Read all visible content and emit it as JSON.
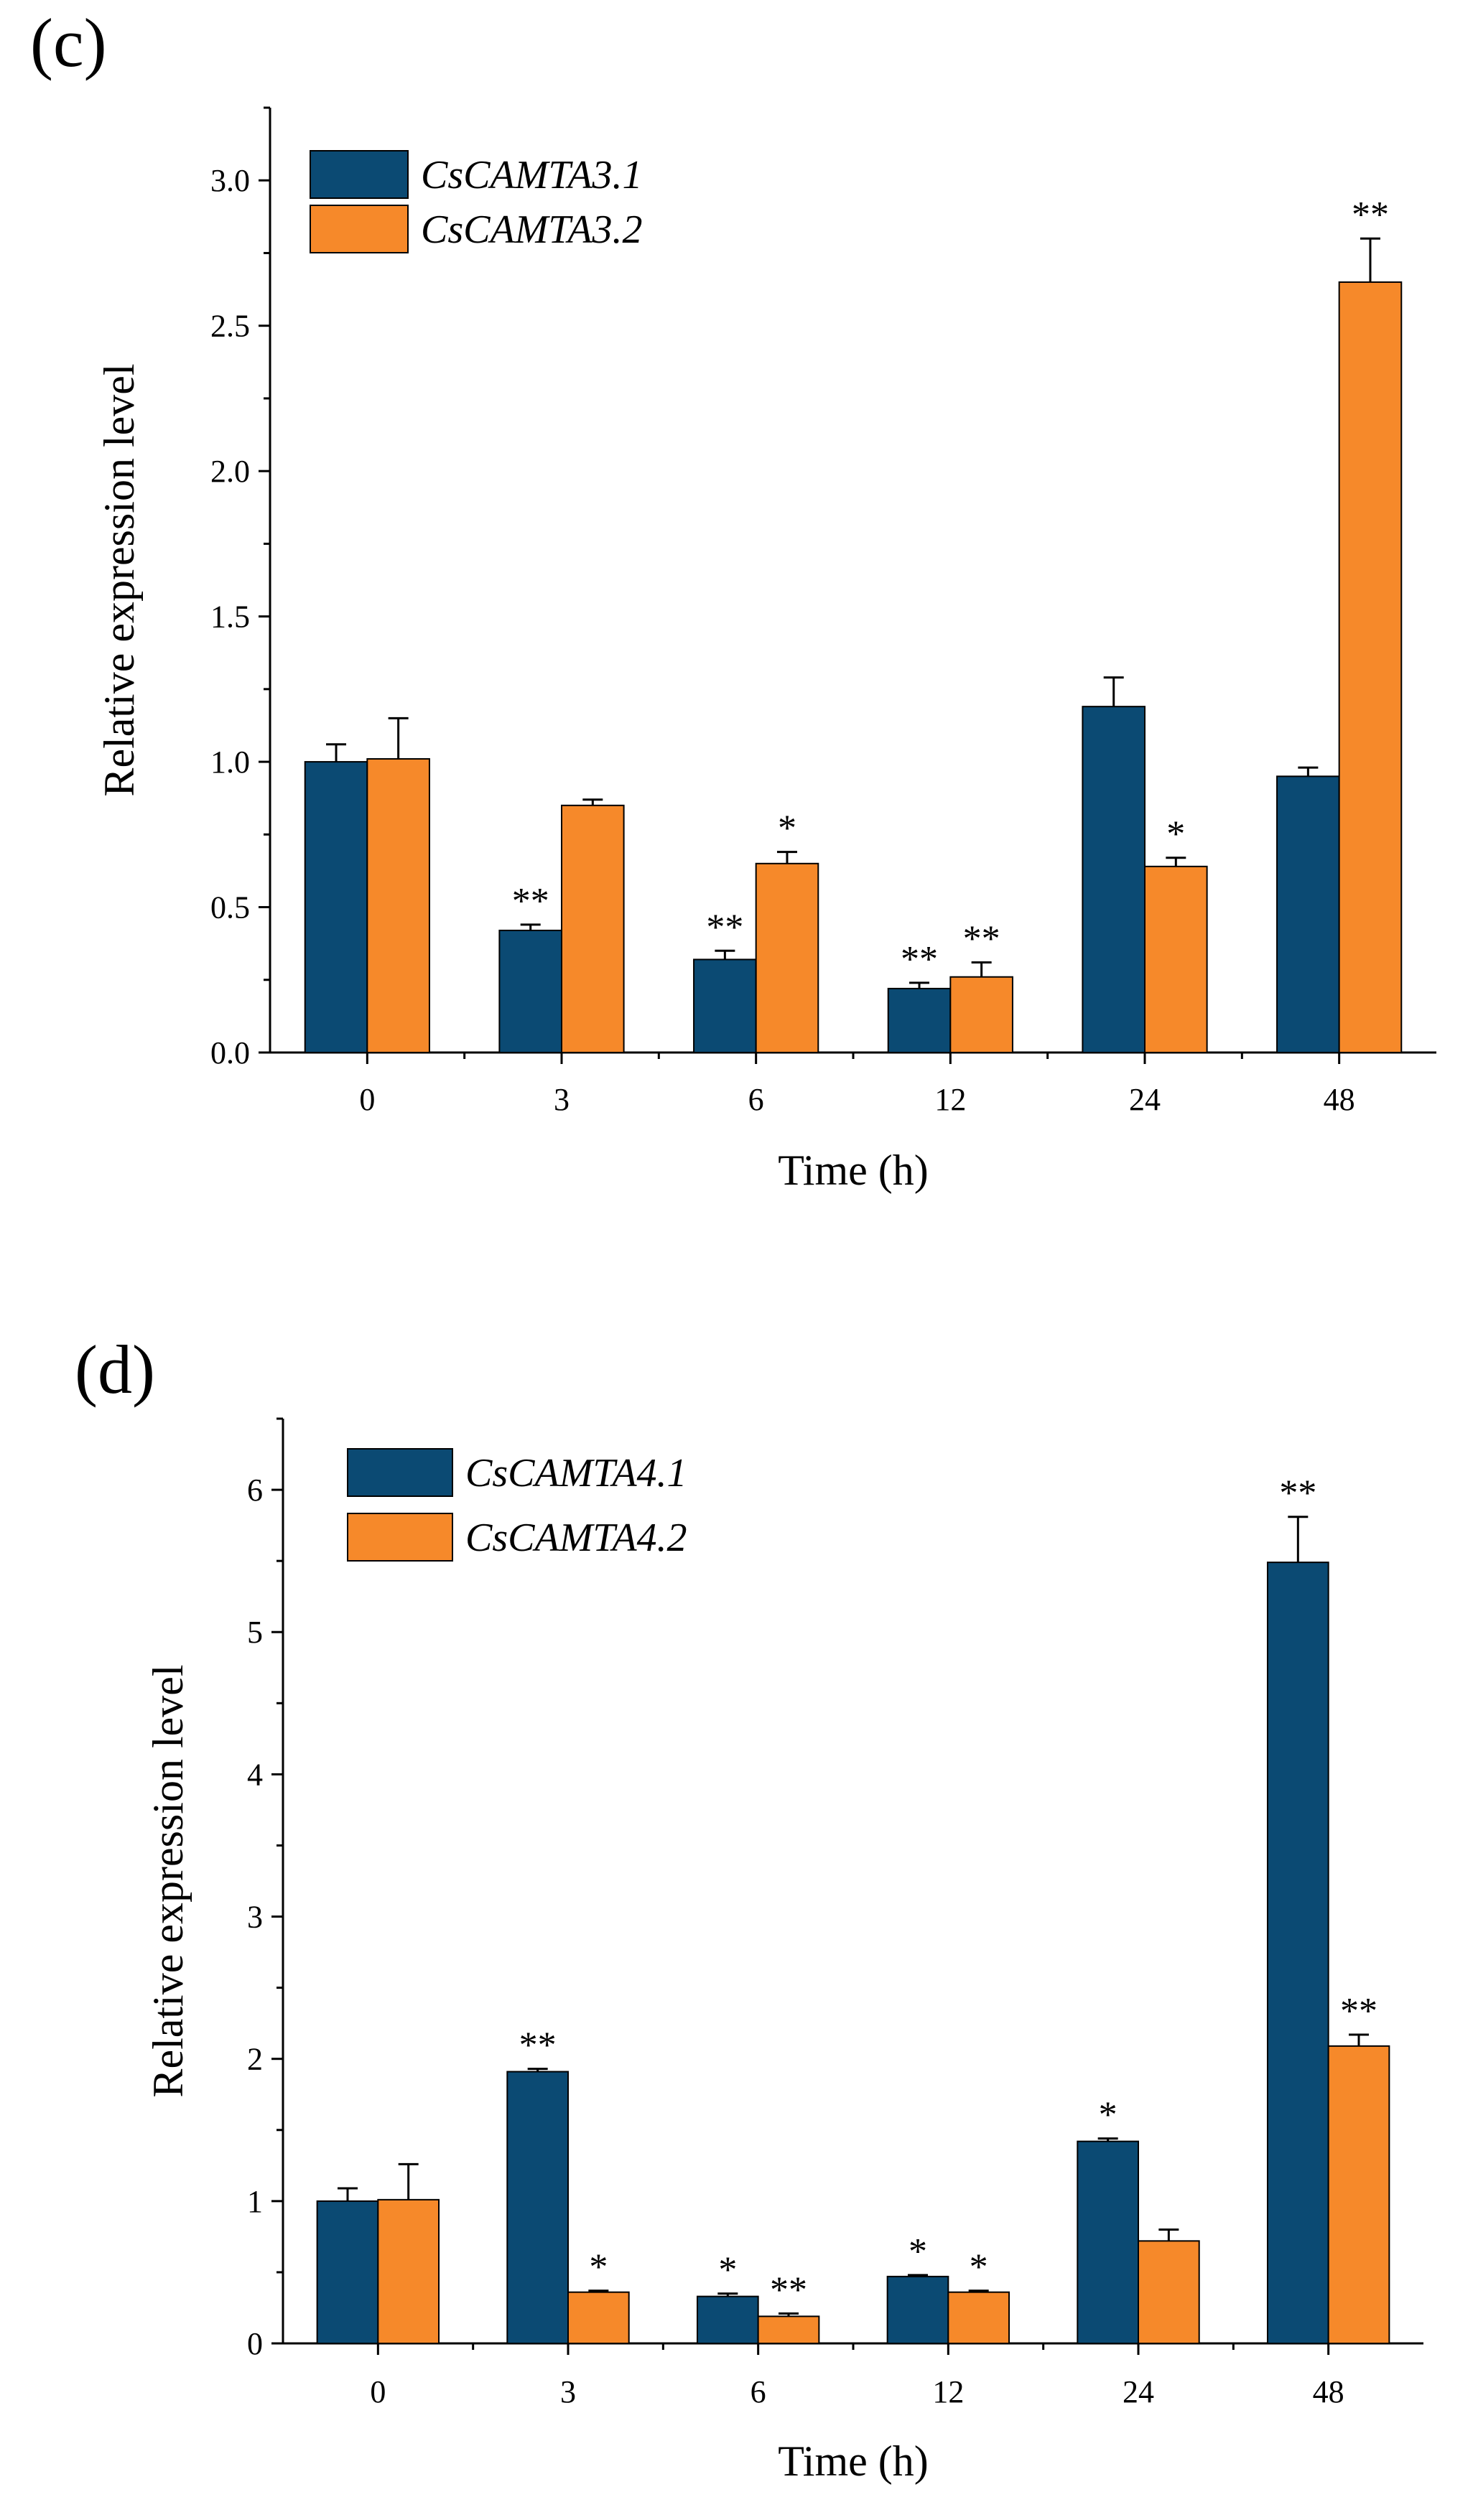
{
  "chart_data": [
    {
      "type": "bar",
      "panel_label": "(c)",
      "categories": [
        "0",
        "3",
        "6",
        "12",
        "24",
        "48"
      ],
      "xlabel": "Time (h)",
      "ylabel": "Relative expression level",
      "ylim": [
        0,
        3.25
      ],
      "yticks": [
        "0.0",
        "0.5",
        "1.0",
        "1.5",
        "2.0",
        "2.5",
        "3.0"
      ],
      "ytick_values": [
        0,
        0.5,
        1.0,
        1.5,
        2.0,
        2.5,
        3.0
      ],
      "legend_position": "top-left",
      "series": [
        {
          "name": "CsCAMTA3.1",
          "color": "#0b4a73",
          "values": [
            1.0,
            0.42,
            0.32,
            0.22,
            1.19,
            0.95
          ],
          "errors": [
            0.06,
            0.02,
            0.03,
            0.02,
            0.1,
            0.03
          ],
          "significance": [
            "",
            "**",
            "**",
            "**",
            "",
            ""
          ]
        },
        {
          "name": "CsCAMTA3.2",
          "color": "#f6892a",
          "values": [
            1.01,
            0.85,
            0.65,
            0.26,
            0.64,
            2.65
          ],
          "errors": [
            0.14,
            0.02,
            0.04,
            0.05,
            0.03,
            0.15
          ],
          "significance": [
            "",
            "",
            "*",
            "**",
            "*",
            "**"
          ]
        }
      ]
    },
    {
      "type": "bar",
      "panel_label": "(d)",
      "categories": [
        "0",
        "3",
        "6",
        "12",
        "24",
        "48"
      ],
      "xlabel": "Time (h)",
      "ylabel": "Relative expression level",
      "ylim": [
        0,
        6.5
      ],
      "yticks": [
        "0",
        "1",
        "2",
        "3",
        "4",
        "5",
        "6"
      ],
      "ytick_values": [
        0,
        1,
        2,
        3,
        4,
        5,
        6
      ],
      "legend_position": "top-left",
      "series": [
        {
          "name": "CsCAMTA4.1",
          "color": "#0b4a73",
          "values": [
            1.0,
            1.91,
            0.33,
            0.47,
            1.42,
            5.49
          ],
          "errors": [
            0.09,
            0.02,
            0.02,
            0.01,
            0.02,
            0.32
          ],
          "significance": [
            "",
            "**",
            "*",
            "*",
            "*",
            "**"
          ]
        },
        {
          "name": "CsCAMTA4.2",
          "color": "#f6892a",
          "values": [
            1.01,
            0.36,
            0.19,
            0.36,
            0.72,
            2.09
          ],
          "errors": [
            0.25,
            0.01,
            0.02,
            0.01,
            0.08,
            0.08
          ],
          "significance": [
            "",
            "*",
            "**",
            "*",
            "",
            "**"
          ]
        }
      ]
    }
  ]
}
